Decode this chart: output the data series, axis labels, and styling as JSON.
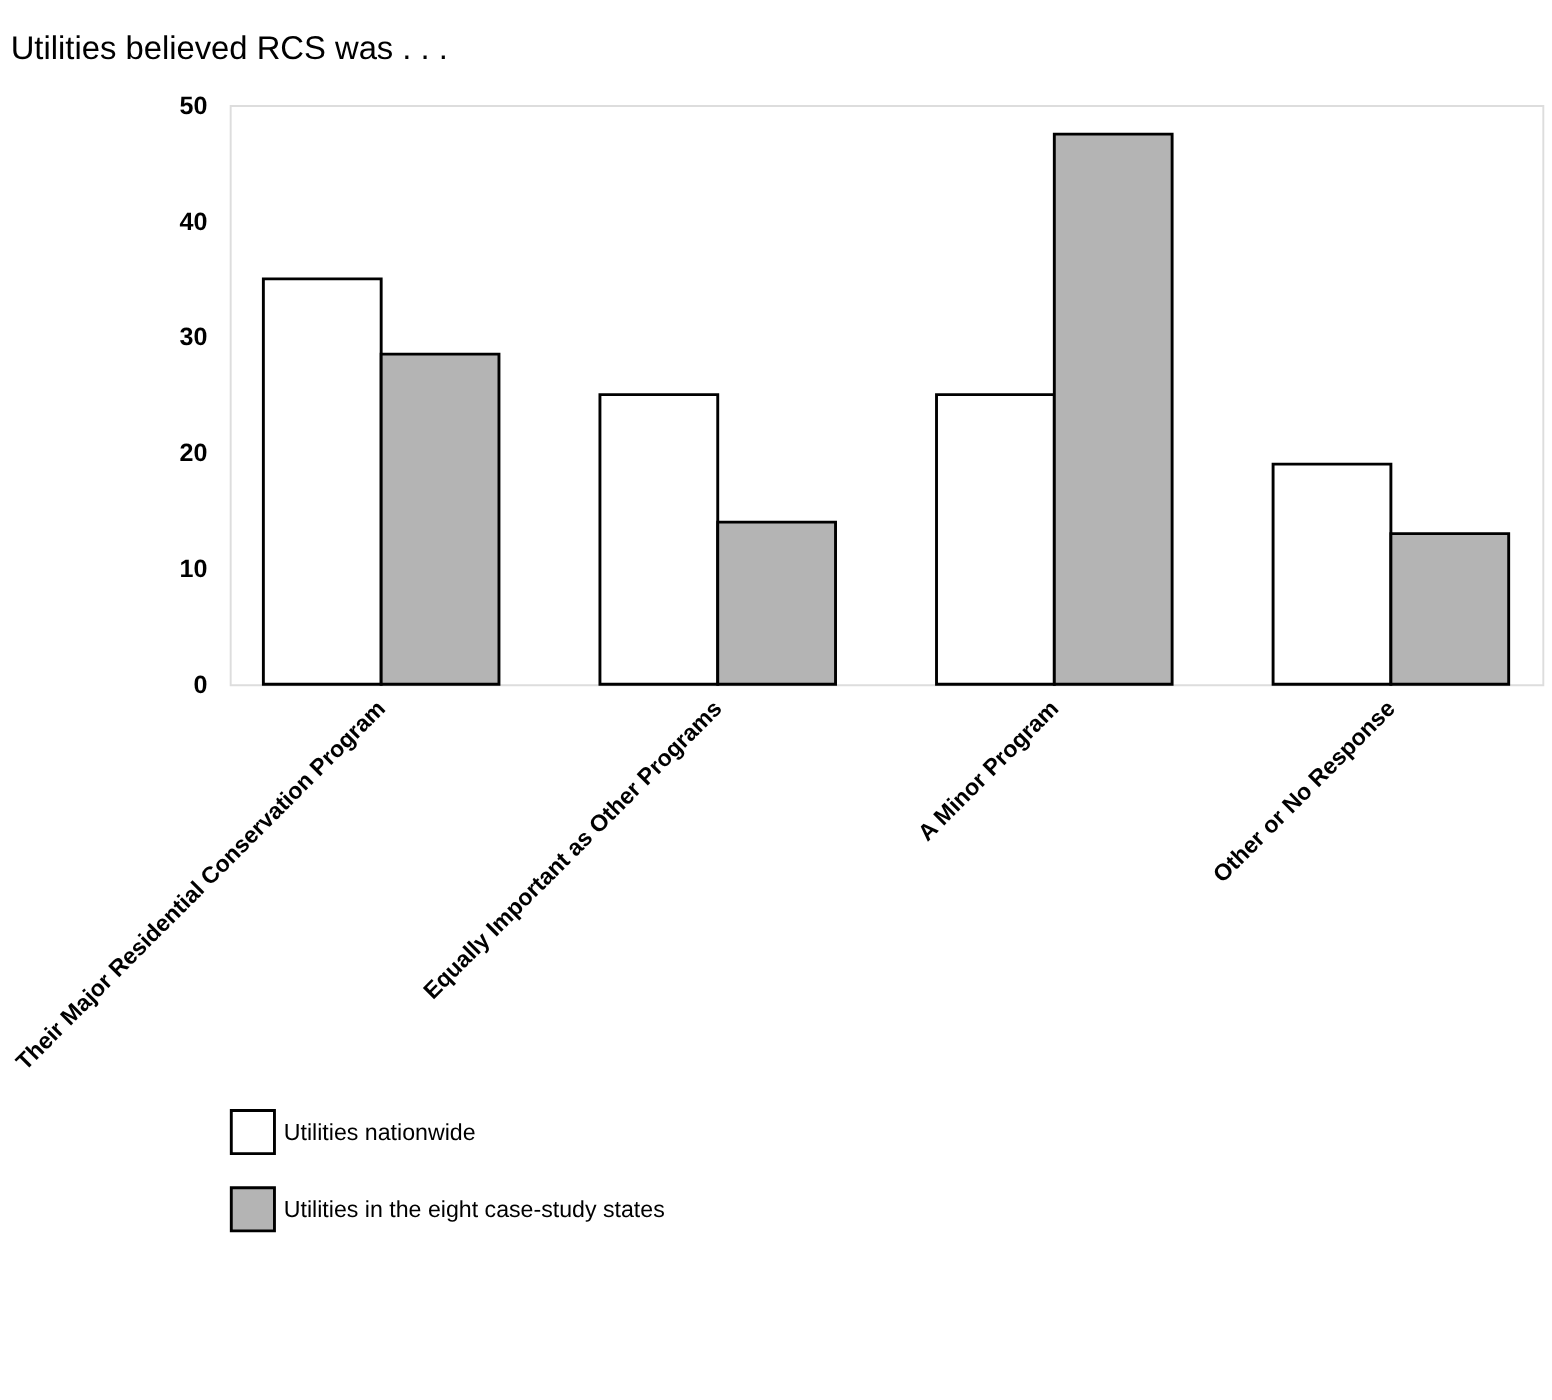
{
  "chart_data": {
    "type": "bar",
    "title": "Utilities believed RCS was . . .",
    "categories": [
      "Their Major Residential Conservation Program",
      "Equally Important as Other Programs",
      "A Minor Program",
      "Other or No Response"
    ],
    "series": [
      {
        "name": "Utilities nationwide",
        "color": "#ffffff",
        "values": [
          35,
          25,
          25,
          19
        ]
      },
      {
        "name": "Utilities in the eight case-study states",
        "color": "#b4b4b4",
        "values": [
          28.5,
          14,
          47.5,
          13
        ]
      }
    ],
    "ylim": [
      0,
      50
    ],
    "yticks": [
      0,
      10,
      20,
      30,
      40,
      50
    ],
    "grid": false,
    "legend": "bottom"
  }
}
